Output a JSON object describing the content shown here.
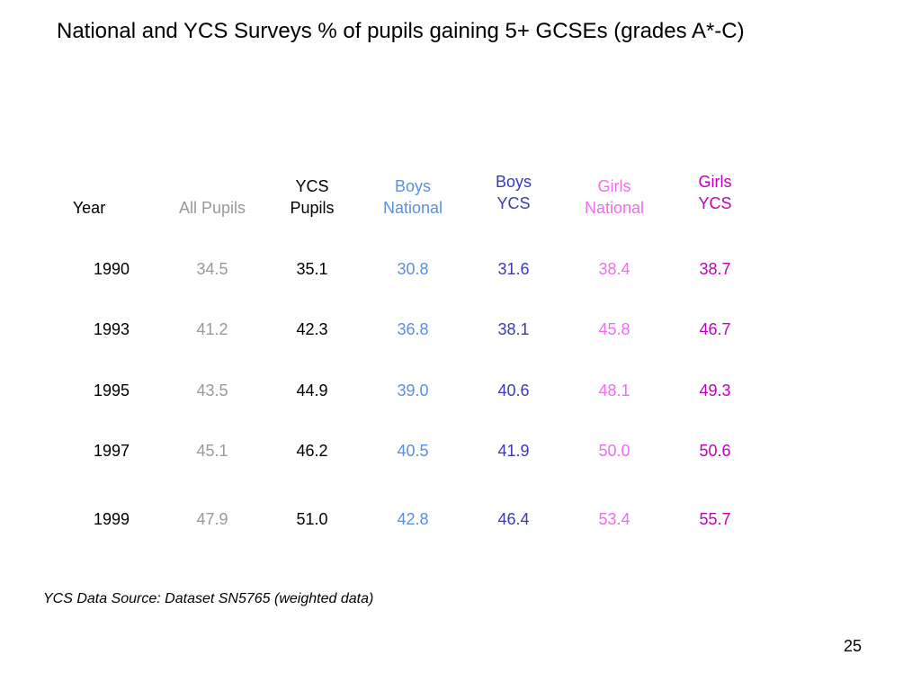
{
  "slide": {
    "title": "National and YCS Surveys % of pupils gaining 5+ GCSEs (grades A*-C)",
    "source_note": "YCS Data Source: Dataset SN5765 (weighted data)",
    "page_number": "25"
  },
  "colors": {
    "year": "#000000",
    "all_pupils": "#999999",
    "ycs_pupils": "#000000",
    "boys_national": "#5b8fe0",
    "boys_ycs": "#3a3ab8",
    "girls_national": "#f06cf0",
    "girls_ycs": "#c000c0"
  },
  "table": {
    "headers": [
      {
        "line1": "",
        "line2": "Year"
      },
      {
        "line1": "",
        "line2": "All Pupils"
      },
      {
        "line1": "YCS",
        "line2": "Pupils"
      },
      {
        "line1": "Boys",
        "line2": "National"
      },
      {
        "line1": "Boys",
        "line2": "YCS"
      },
      {
        "line1": "Girls",
        "line2": "National"
      },
      {
        "line1": "Girls",
        "line2": "YCS"
      }
    ],
    "rows": [
      [
        "1990",
        "34.5",
        "35.1",
        "30.8",
        "31.6",
        "38.4",
        "38.7"
      ],
      [
        "1993",
        "41.2",
        "42.3",
        "36.8",
        "38.1",
        "45.8",
        "46.7"
      ],
      [
        "1995",
        "43.5",
        "44.9",
        "39.0",
        "40.6",
        "48.1",
        "49.3"
      ],
      [
        "1997",
        "45.1",
        "46.2",
        "40.5",
        "41.9",
        "50.0",
        "50.6"
      ],
      [
        "1999",
        "47.9",
        "51.0",
        "42.8",
        "46.4",
        "53.4",
        "55.7"
      ]
    ]
  }
}
